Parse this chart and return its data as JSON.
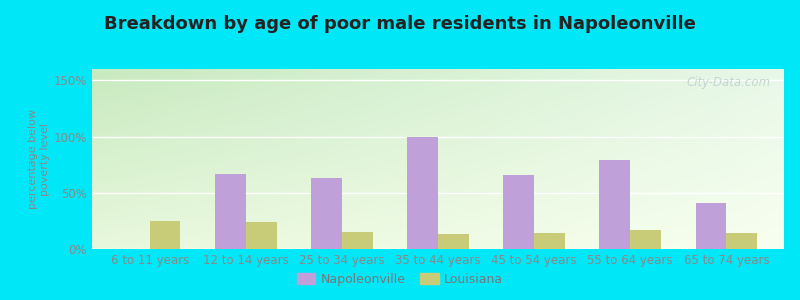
{
  "title": "Breakdown by age of poor male residents in Napoleonville",
  "categories": [
    "6 to 11 years",
    "12 to 14 years",
    "25 to 34 years",
    "35 to 44 years",
    "45 to 54 years",
    "55 to 64 years",
    "65 to 74 years"
  ],
  "napoleonville": [
    0,
    67,
    63,
    100,
    66,
    79,
    41
  ],
  "louisiana": [
    25,
    24,
    15,
    13,
    14,
    17,
    14
  ],
  "napoleonville_color": "#c0a0d8",
  "louisiana_color": "#c8cc78",
  "ylabel": "percentage below\npoverty level",
  "ylim": [
    0,
    160
  ],
  "yticks": [
    0,
    50,
    100,
    150
  ],
  "ytick_labels": [
    "0%",
    "50%",
    "100%",
    "150%"
  ],
  "bg_outer": "#00e8f8",
  "bg_grad_top_left": "#c8eac0",
  "bg_grad_top_right": "#e8f8f0",
  "bg_grad_bottom": "#f0fce8",
  "bar_width": 0.32,
  "watermark": "City-Data.com",
  "legend_napoleonville": "Napoleonville",
  "legend_louisiana": "Louisiana",
  "title_fontsize": 13,
  "axis_label_fontsize": 8,
  "tick_fontsize": 8.5,
  "grid_color": "#ffffff",
  "tick_color": "#888888",
  "watermark_color": "#bbcccc",
  "watermark_alpha": 0.8
}
